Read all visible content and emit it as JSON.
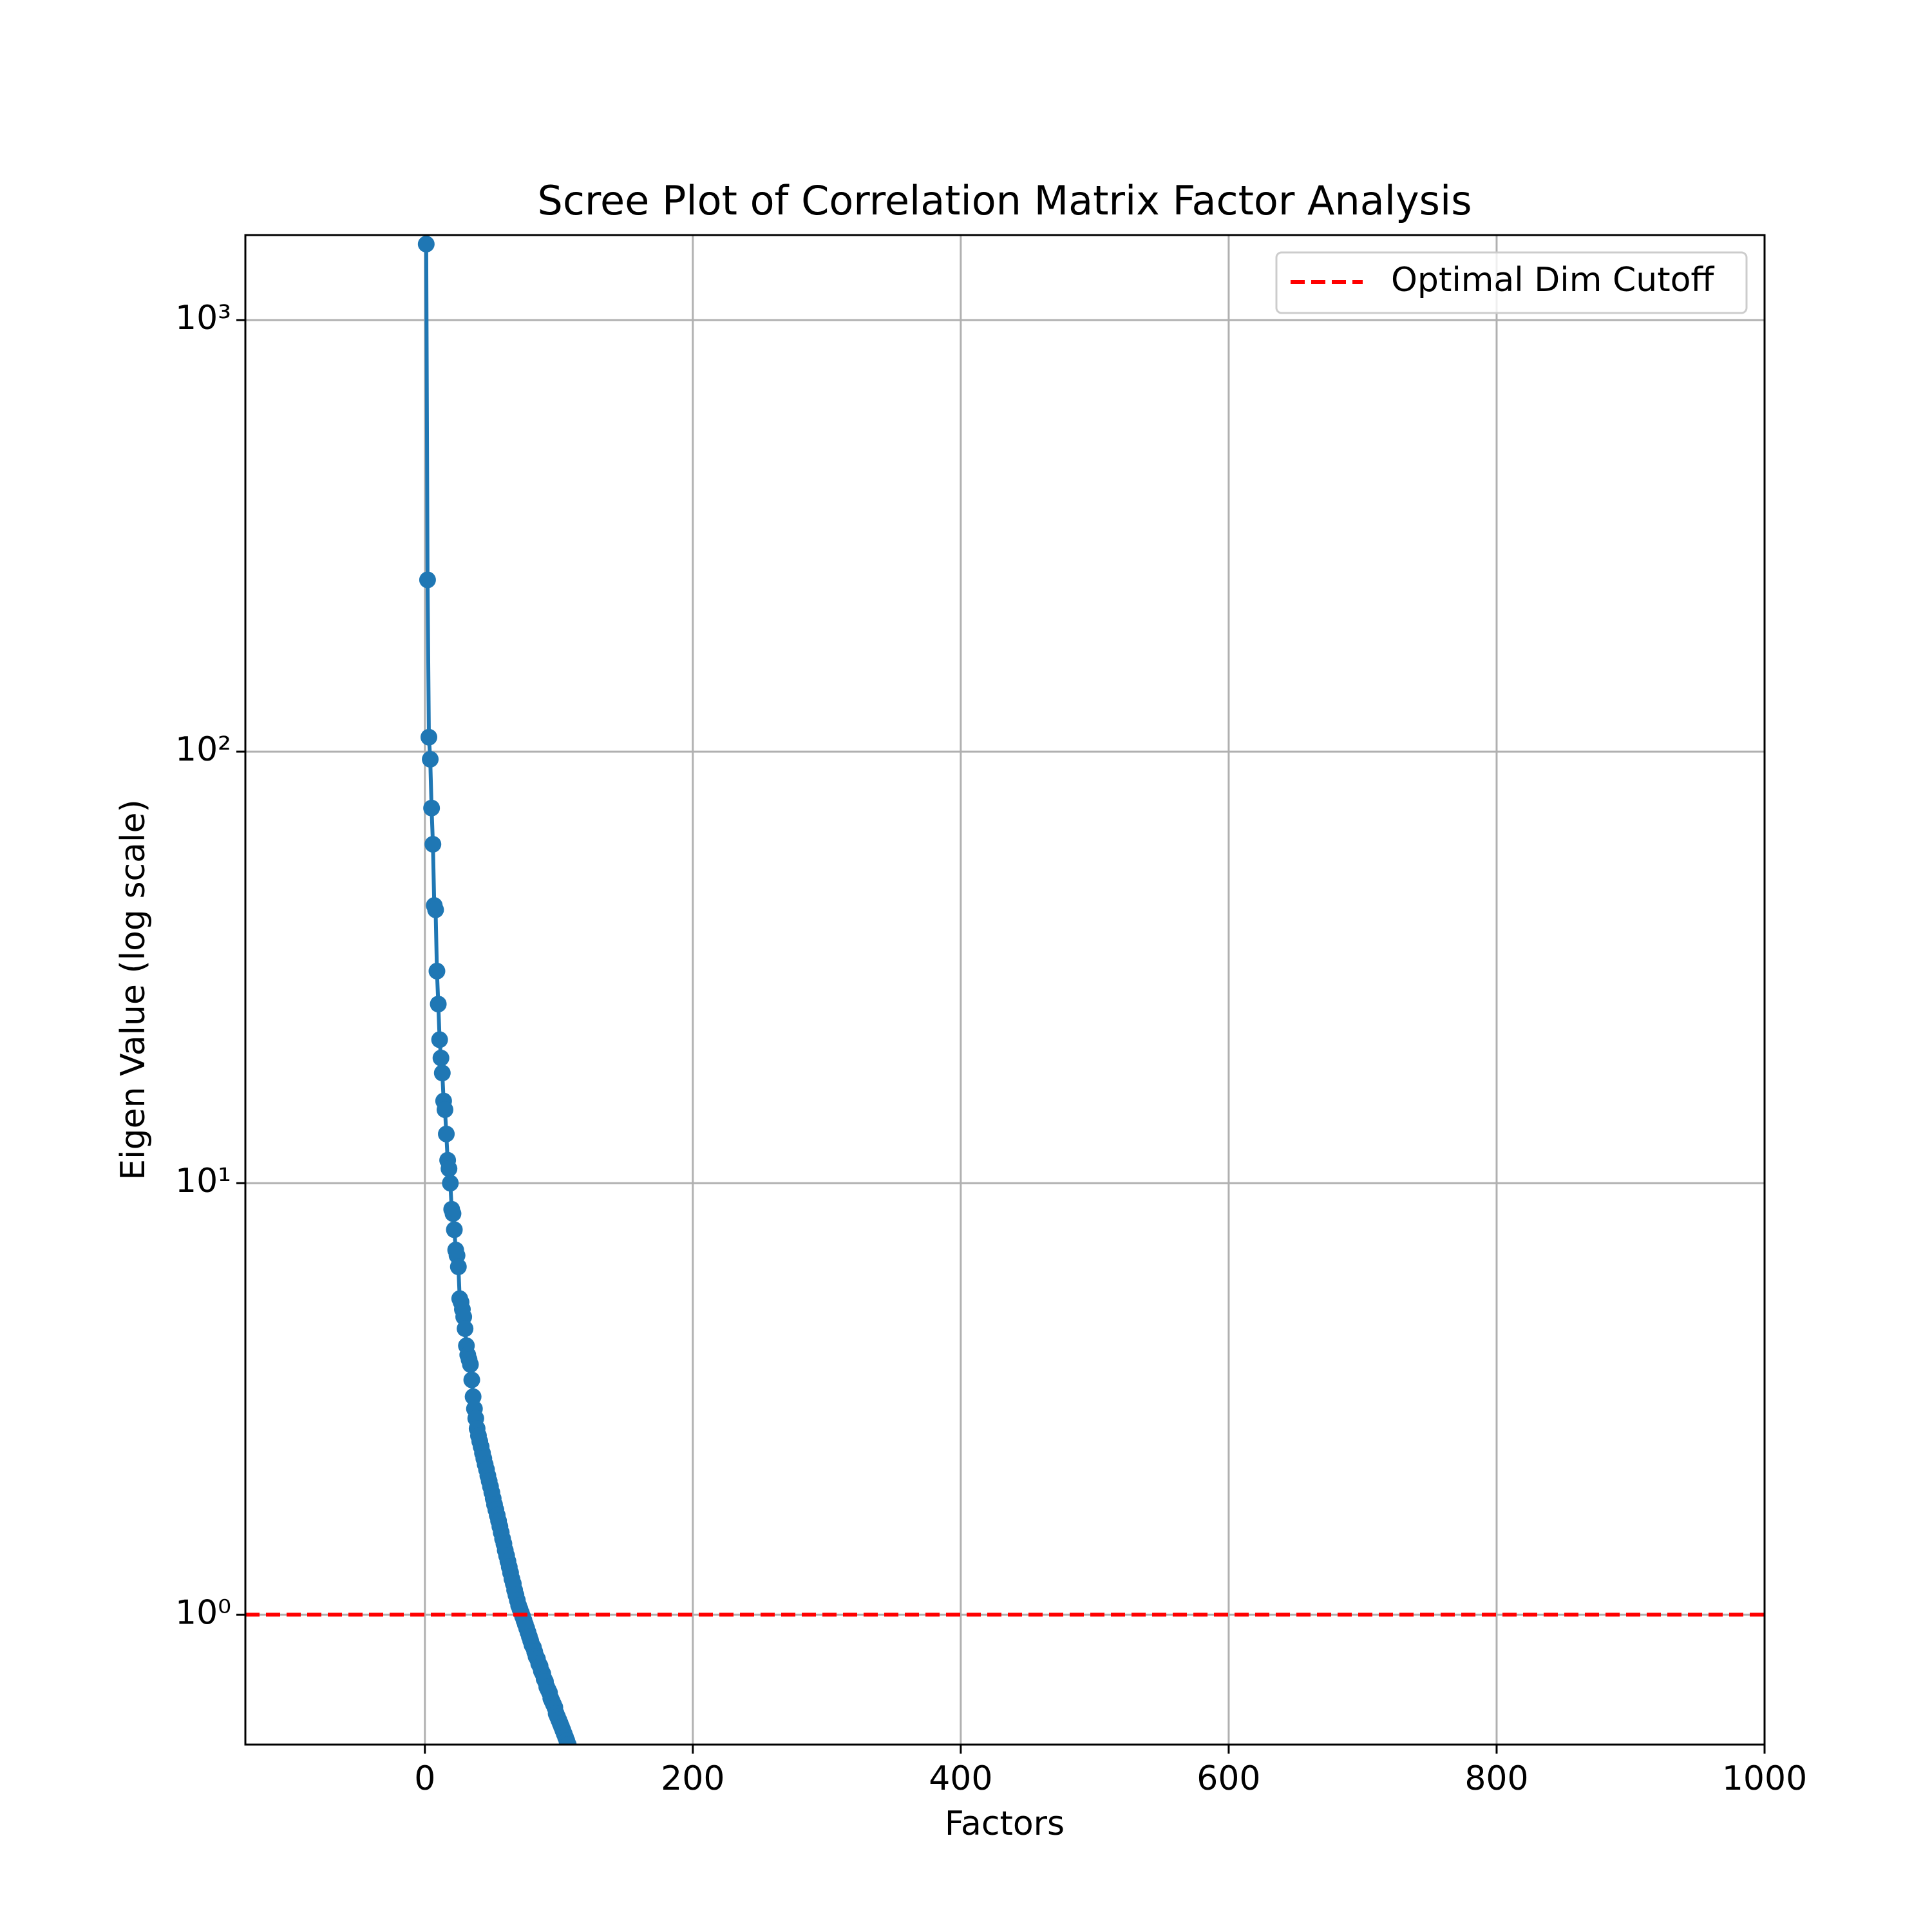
{
  "chart_data": {
    "type": "line",
    "title": "Scree Plot of Correlation Matrix Factor Analysis",
    "x_label": "Factors",
    "y_label": "Eigen Value (log scale)",
    "y_scale": "log",
    "grid": true,
    "legend_position": "upper right",
    "xlim": [
      -134,
      1000
    ],
    "ylim": [
      0.5,
      1574
    ],
    "xticks": [
      0,
      200,
      400,
      600,
      800,
      1000
    ],
    "yticks": [
      {
        "value": 1,
        "label": "10⁰"
      },
      {
        "value": 10,
        "label": "10¹"
      },
      {
        "value": 100,
        "label": "10²"
      },
      {
        "value": 1000,
        "label": "10³"
      }
    ],
    "x": [
      1,
      2,
      3,
      4,
      5,
      6,
      7,
      8,
      9,
      10,
      11,
      12,
      13,
      14,
      15,
      16,
      17,
      18,
      19,
      20,
      21,
      22,
      23,
      24,
      25,
      26,
      27,
      28,
      29,
      30,
      31,
      32,
      33,
      34,
      35,
      36,
      37,
      38,
      39,
      40,
      41,
      42,
      43,
      44,
      45,
      46,
      47,
      48,
      49,
      50,
      51,
      52,
      53,
      54,
      55,
      56,
      57,
      58,
      59,
      60,
      61,
      62,
      63,
      64,
      65,
      66,
      67,
      68,
      69,
      70,
      71,
      72,
      73,
      74,
      75,
      76,
      77,
      78,
      79,
      80,
      81,
      82,
      83,
      84,
      85,
      86,
      87,
      88,
      89,
      90,
      91,
      92,
      93,
      94,
      95,
      96,
      97,
      98,
      99,
      100,
      101,
      102,
      103,
      104,
      105,
      106,
      107
    ],
    "series": [
      {
        "color": "#1f77b4",
        "marker": "circle",
        "values": [
          1500,
          250,
          108,
          96,
          74,
          61,
          44,
          43,
          31,
          26,
          21.5,
          19.5,
          18,
          15.5,
          14.8,
          13,
          11.3,
          10.8,
          10,
          8.7,
          8.5,
          7.8,
          7.0,
          6.8,
          6.4,
          5.4,
          5.3,
          5.1,
          4.9,
          4.6,
          4.2,
          4.0,
          3.9,
          3.8,
          3.5,
          3.2,
          3.0,
          2.85,
          2.7,
          2.6,
          2.52,
          2.45,
          2.37,
          2.3,
          2.23,
          2.17,
          2.1,
          2.04,
          1.98,
          1.92,
          1.86,
          1.8,
          1.75,
          1.7,
          1.65,
          1.6,
          1.55,
          1.5,
          1.46,
          1.41,
          1.37,
          1.33,
          1.29,
          1.25,
          1.21,
          1.18,
          1.14,
          1.11,
          1.08,
          1.05,
          1.03,
          1.01,
          0.99,
          0.97,
          0.95,
          0.93,
          0.91,
          0.89,
          0.87,
          0.85,
          0.84,
          0.82,
          0.8,
          0.79,
          0.77,
          0.76,
          0.74,
          0.73,
          0.71,
          0.7,
          0.68,
          0.67,
          0.66,
          0.64,
          0.63,
          0.62,
          0.61,
          0.59,
          0.58,
          0.57,
          0.56,
          0.55,
          0.54,
          0.53,
          0.52,
          0.51,
          0.5
        ]
      }
    ],
    "hlines": [
      {
        "name": "Optimal Dim Cutoff",
        "y": 1,
        "color": "#ff0000",
        "style": "dashed"
      }
    ]
  }
}
